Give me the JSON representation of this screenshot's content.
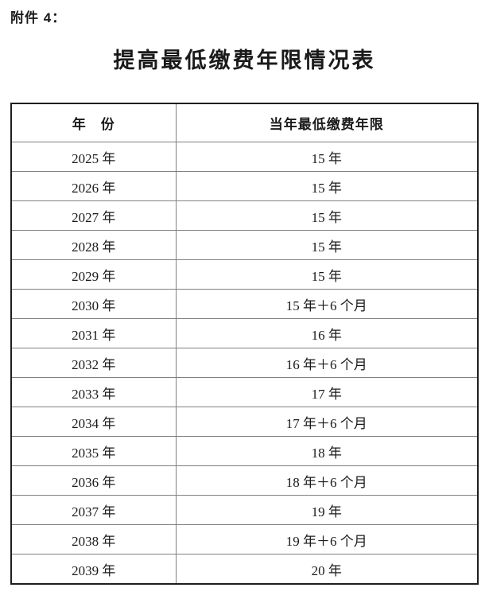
{
  "page": {
    "attachment_label": "附件 4：",
    "title": "提高最低缴费年限情况表"
  },
  "table": {
    "headers": [
      "年　份",
      "当年最低缴费年限"
    ],
    "rows": [
      {
        "year": "2025 年",
        "min_years": "15 年"
      },
      {
        "year": "2026 年",
        "min_years": "15 年"
      },
      {
        "year": "2027 年",
        "min_years": "15 年"
      },
      {
        "year": "2028 年",
        "min_years": "15 年"
      },
      {
        "year": "2029 年",
        "min_years": "15 年"
      },
      {
        "year": "2030 年",
        "min_years": "15 年＋6 个月"
      },
      {
        "year": "2031 年",
        "min_years": "16 年"
      },
      {
        "year": "2032 年",
        "min_years": "16 年＋6 个月"
      },
      {
        "year": "2033 年",
        "min_years": "17 年"
      },
      {
        "year": "2034 年",
        "min_years": "17 年＋6 个月"
      },
      {
        "year": "2035 年",
        "min_years": "18 年"
      },
      {
        "year": "2036 年",
        "min_years": "18 年＋6 个月"
      },
      {
        "year": "2037 年",
        "min_years": "19 年"
      },
      {
        "year": "2038 年",
        "min_years": "19 年＋6 个月"
      },
      {
        "year": "2039 年",
        "min_years": "20 年"
      }
    ]
  },
  "colors": {
    "text": "#1a1a1a",
    "border_outer": "#1f1f1f",
    "border_inner": "#808080",
    "background": "#ffffff"
  }
}
